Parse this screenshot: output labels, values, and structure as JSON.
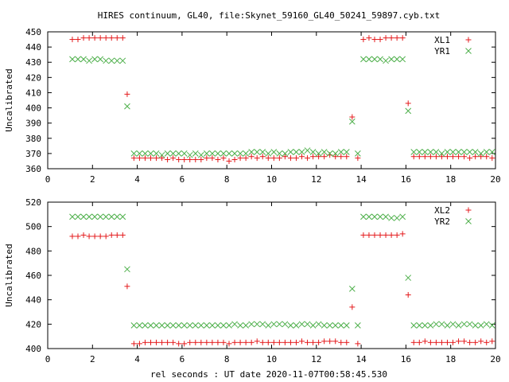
{
  "title": "HIRES continuum, GL40, file:Skynet_59160_GL40_50241_59897.cyb.txt",
  "xlabel": "rel seconds : UT date 2020-11-07T00:58:45.530",
  "chart_data": [
    {
      "type": "scatter",
      "ylabel": "Uncalibrated",
      "xlim": [
        0,
        20
      ],
      "ylim": [
        360,
        450
      ],
      "xticks": [
        0,
        2,
        4,
        6,
        8,
        10,
        12,
        14,
        16,
        18,
        20
      ],
      "yticks": [
        360,
        370,
        380,
        390,
        400,
        410,
        420,
        430,
        440,
        450
      ],
      "grid": false,
      "legend_position": "top-right",
      "series": [
        {
          "name": "XL1",
          "marker": "plus",
          "color": "#e41a1c",
          "x": [
            1.1,
            1.35,
            1.6,
            1.85,
            2.1,
            2.35,
            2.6,
            2.85,
            3.1,
            3.35,
            3.55,
            3.85,
            4.1,
            4.35,
            4.6,
            4.85,
            5.1,
            5.35,
            5.6,
            5.85,
            6.1,
            6.35,
            6.6,
            6.85,
            7.1,
            7.35,
            7.6,
            7.85,
            8.1,
            8.35,
            8.6,
            8.85,
            9.1,
            9.35,
            9.6,
            9.85,
            10.1,
            10.35,
            10.6,
            10.85,
            11.1,
            11.35,
            11.6,
            11.85,
            12.1,
            12.35,
            12.6,
            12.85,
            13.1,
            13.35,
            13.6,
            13.85,
            14.1,
            14.35,
            14.6,
            14.85,
            15.1,
            15.35,
            15.6,
            15.85,
            16.1,
            16.35,
            16.6,
            16.85,
            17.1,
            17.35,
            17.6,
            17.85,
            18.1,
            18.35,
            18.6,
            18.85,
            19.1,
            19.35,
            19.6,
            19.85
          ],
          "y": [
            445,
            445,
            446,
            446,
            446,
            446,
            446,
            446,
            446,
            446,
            409,
            367,
            367,
            367,
            367,
            367,
            367,
            366,
            367,
            366,
            366,
            366,
            366,
            366,
            367,
            367,
            366,
            367,
            365,
            366,
            367,
            367,
            368,
            367,
            368,
            367,
            367,
            367,
            368,
            367,
            367,
            368,
            367,
            368,
            368,
            368,
            369,
            368,
            368,
            368,
            394,
            367,
            445,
            446,
            445,
            445,
            446,
            446,
            446,
            446,
            403,
            368,
            368,
            368,
            368,
            368,
            368,
            368,
            368,
            368,
            368,
            367,
            368,
            368,
            368,
            367
          ]
        },
        {
          "name": "YR1",
          "marker": "cross",
          "color": "#4daf4a",
          "x": [
            1.1,
            1.35,
            1.6,
            1.85,
            2.1,
            2.35,
            2.6,
            2.85,
            3.1,
            3.35,
            3.55,
            3.85,
            4.1,
            4.35,
            4.6,
            4.85,
            5.1,
            5.35,
            5.6,
            5.85,
            6.1,
            6.35,
            6.6,
            6.85,
            7.1,
            7.35,
            7.6,
            7.85,
            8.1,
            8.35,
            8.6,
            8.85,
            9.1,
            9.35,
            9.6,
            9.85,
            10.1,
            10.35,
            10.6,
            10.85,
            11.1,
            11.35,
            11.6,
            11.85,
            12.1,
            12.35,
            12.6,
            12.85,
            13.1,
            13.35,
            13.6,
            13.85,
            14.1,
            14.35,
            14.6,
            14.85,
            15.1,
            15.35,
            15.6,
            15.85,
            16.1,
            16.35,
            16.6,
            16.85,
            17.1,
            17.35,
            17.6,
            17.85,
            18.1,
            18.35,
            18.6,
            18.85,
            19.1,
            19.35,
            19.6,
            19.85
          ],
          "y": [
            432,
            432,
            432,
            431,
            432,
            432,
            431,
            431,
            431,
            431,
            401,
            370,
            370,
            370,
            370,
            370,
            369,
            370,
            370,
            370,
            370,
            369,
            370,
            369,
            370,
            370,
            370,
            370,
            370,
            370,
            370,
            370,
            371,
            371,
            371,
            370,
            371,
            370,
            370,
            371,
            371,
            371,
            372,
            371,
            370,
            371,
            370,
            370,
            371,
            371,
            391,
            370,
            432,
            432,
            432,
            432,
            431,
            432,
            432,
            432,
            398,
            371,
            371,
            371,
            371,
            371,
            370,
            371,
            371,
            371,
            371,
            371,
            371,
            370,
            371,
            371
          ]
        }
      ]
    },
    {
      "type": "scatter",
      "ylabel": "Uncalibrated",
      "xlim": [
        0,
        20
      ],
      "ylim": [
        400,
        520
      ],
      "xticks": [
        0,
        2,
        4,
        6,
        8,
        10,
        12,
        14,
        16,
        18,
        20
      ],
      "yticks": [
        400,
        420,
        440,
        460,
        480,
        500,
        520
      ],
      "grid": false,
      "legend_position": "top-right",
      "series": [
        {
          "name": "XL2",
          "marker": "plus",
          "color": "#e41a1c",
          "x": [
            1.1,
            1.35,
            1.6,
            1.85,
            2.1,
            2.35,
            2.6,
            2.85,
            3.1,
            3.35,
            3.55,
            3.85,
            4.1,
            4.35,
            4.6,
            4.85,
            5.1,
            5.35,
            5.6,
            5.85,
            6.1,
            6.35,
            6.6,
            6.85,
            7.1,
            7.35,
            7.6,
            7.85,
            8.1,
            8.35,
            8.6,
            8.85,
            9.1,
            9.35,
            9.6,
            9.85,
            10.1,
            10.35,
            10.6,
            10.85,
            11.1,
            11.35,
            11.6,
            11.85,
            12.1,
            12.35,
            12.6,
            12.85,
            13.1,
            13.35,
            13.6,
            13.85,
            14.1,
            14.35,
            14.6,
            14.85,
            15.1,
            15.35,
            15.6,
            15.85,
            16.1,
            16.35,
            16.6,
            16.85,
            17.1,
            17.35,
            17.6,
            17.85,
            18.1,
            18.35,
            18.6,
            18.85,
            19.1,
            19.35,
            19.6,
            19.85
          ],
          "y": [
            492,
            492,
            493,
            492,
            492,
            492,
            492,
            493,
            493,
            493,
            451,
            404,
            404,
            405,
            405,
            405,
            405,
            405,
            405,
            404,
            404,
            405,
            405,
            405,
            405,
            405,
            405,
            405,
            404,
            405,
            405,
            405,
            405,
            406,
            405,
            405,
            405,
            405,
            405,
            405,
            405,
            406,
            405,
            405,
            405,
            406,
            406,
            406,
            405,
            405,
            434,
            404,
            493,
            493,
            493,
            493,
            493,
            493,
            493,
            494,
            444,
            405,
            405,
            406,
            405,
            405,
            405,
            405,
            405,
            406,
            406,
            405,
            405,
            406,
            405,
            406
          ]
        },
        {
          "name": "YR2",
          "marker": "cross",
          "color": "#4daf4a",
          "x": [
            1.1,
            1.35,
            1.6,
            1.85,
            2.1,
            2.35,
            2.6,
            2.85,
            3.1,
            3.35,
            3.55,
            3.85,
            4.1,
            4.35,
            4.6,
            4.85,
            5.1,
            5.35,
            5.6,
            5.85,
            6.1,
            6.35,
            6.6,
            6.85,
            7.1,
            7.35,
            7.6,
            7.85,
            8.1,
            8.35,
            8.6,
            8.85,
            9.1,
            9.35,
            9.6,
            9.85,
            10.1,
            10.35,
            10.6,
            10.85,
            11.1,
            11.35,
            11.6,
            11.85,
            12.1,
            12.35,
            12.6,
            12.85,
            13.1,
            13.35,
            13.6,
            13.85,
            14.1,
            14.35,
            14.6,
            14.85,
            15.1,
            15.35,
            15.6,
            15.85,
            16.1,
            16.35,
            16.6,
            16.85,
            17.1,
            17.35,
            17.6,
            17.85,
            18.1,
            18.35,
            18.6,
            18.85,
            19.1,
            19.35,
            19.6,
            19.85
          ],
          "y": [
            508,
            508,
            508,
            508,
            508,
            508,
            508,
            508,
            508,
            508,
            465,
            419,
            419,
            419,
            419,
            419,
            419,
            419,
            419,
            419,
            419,
            419,
            419,
            419,
            419,
            419,
            419,
            419,
            419,
            420,
            419,
            419,
            420,
            420,
            420,
            419,
            420,
            420,
            420,
            419,
            419,
            420,
            420,
            419,
            420,
            419,
            419,
            419,
            419,
            419,
            449,
            419,
            508,
            508,
            508,
            508,
            508,
            507,
            507,
            508,
            458,
            419,
            419,
            419,
            419,
            420,
            420,
            419,
            420,
            419,
            420,
            420,
            419,
            419,
            420,
            419
          ]
        }
      ]
    }
  ]
}
